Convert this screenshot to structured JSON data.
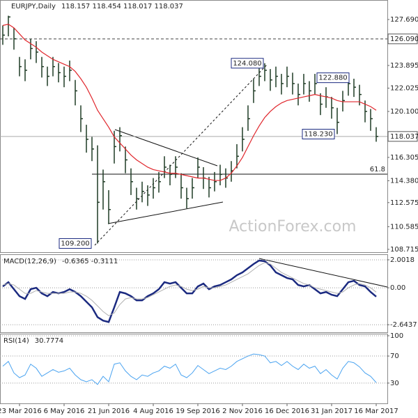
{
  "chart_data": [
    {
      "type": "hlc",
      "title": "EURJPY,Daily",
      "subtitle": "118.157 118.454 118.017 118.037",
      "categories": [
        null,
        null,
        null,
        "23 Mar 2016",
        null,
        null,
        null,
        null,
        null,
        null,
        null,
        "6 May 2016",
        null,
        null,
        null,
        null,
        null,
        null,
        null,
        "21 Jun 2016",
        null,
        null,
        null,
        null,
        null,
        null,
        null,
        "4 Aug 2016",
        null,
        null,
        null,
        null,
        null,
        null,
        null,
        "19 Sep 2016",
        null,
        null,
        null,
        null,
        null,
        null,
        null,
        "2 Nov 2016",
        null,
        null,
        null,
        null,
        null,
        null,
        null,
        "16 Dec 2016",
        null,
        null,
        null,
        null,
        null,
        null,
        null,
        "31 Jan 2017",
        null,
        null,
        null,
        null,
        null,
        null,
        null,
        "16 Mar 2017"
      ],
      "high": [
        127.2,
        128.0,
        127.0,
        124.6,
        124.4,
        126.1,
        125.9,
        124.6,
        123.8,
        124.6,
        124.1,
        123.8,
        124.3,
        122.7,
        120.6,
        119.0,
        118.0,
        117.3,
        115.3,
        113.6,
        118.5,
        118.8,
        117.2,
        115.4,
        113.8,
        114.3,
        114.0,
        114.6,
        115.1,
        116.4,
        115.7,
        116.4,
        115.0,
        113.8,
        114.6,
        116.3,
        115.5,
        114.7,
        115.1,
        115.7,
        115.4,
        116.0,
        117.4,
        118.8,
        120.6,
        122.8,
        123.7,
        124.08,
        123.6,
        123.8,
        123.2,
        123.8,
        123.3,
        122.4,
        123.2,
        122.6,
        123.2,
        121.6,
        122.1,
        121.3,
        120.4,
        121.8,
        122.88,
        122.8,
        122.3,
        121.0,
        120.3,
        118.8
      ],
      "low": [
        125.6,
        126.3,
        125.2,
        123.0,
        122.6,
        124.4,
        124.1,
        122.9,
        122.2,
        123.0,
        122.5,
        122.1,
        122.6,
        120.6,
        118.4,
        116.7,
        116.0,
        109.2,
        112.0,
        110.8,
        115.8,
        116.8,
        115.0,
        113.2,
        112.0,
        112.6,
        112.3,
        112.9,
        113.4,
        114.6,
        114.0,
        114.6,
        112.9,
        112.1,
        112.9,
        114.6,
        113.7,
        113.0,
        113.5,
        114.0,
        113.8,
        114.3,
        115.4,
        116.8,
        118.5,
        120.8,
        122.2,
        122.6,
        121.8,
        122.1,
        121.5,
        122.1,
        121.5,
        120.6,
        121.5,
        120.9,
        121.5,
        119.8,
        120.4,
        119.5,
        118.23,
        120.1,
        121.4,
        121.3,
        120.6,
        119.2,
        118.5,
        117.6
      ],
      "close": [
        126.4,
        127.9,
        126.1,
        123.8,
        123.5,
        125.3,
        125.0,
        123.8,
        123.0,
        123.8,
        123.3,
        123.0,
        123.5,
        121.8,
        119.5,
        117.8,
        117.0,
        112.6,
        114.3,
        112.0,
        117.2,
        118.1,
        116.1,
        114.3,
        112.9,
        113.5,
        113.2,
        113.8,
        114.3,
        115.5,
        114.9,
        115.5,
        113.8,
        112.9,
        113.8,
        115.5,
        114.6,
        113.8,
        114.3,
        114.9,
        114.6,
        115.2,
        116.4,
        117.8,
        119.5,
        121.8,
        123.0,
        123.5,
        122.7,
        123.0,
        122.4,
        123.0,
        122.4,
        121.5,
        122.4,
        121.8,
        122.4,
        120.7,
        121.3,
        120.4,
        119.2,
        121.0,
        122.4,
        122.1,
        121.5,
        120.1,
        119.5,
        118.037
      ],
      "color": "#1e3a24",
      "overlay_values": [
        127.2,
        127.3,
        127.0,
        126.5,
        126.0,
        125.7,
        125.4,
        125.0,
        124.7,
        124.4,
        124.2,
        124.0,
        123.8,
        123.4,
        122.8,
        122.1,
        121.2,
        120.2,
        119.5,
        118.8,
        118.0,
        117.5,
        117.0,
        116.5,
        116.1,
        115.8,
        115.5,
        115.3,
        115.2,
        115.1,
        115.0,
        115.0,
        114.9,
        114.8,
        114.7,
        114.6,
        114.6,
        114.5,
        114.4,
        114.4,
        114.6,
        115.0,
        115.6,
        116.3,
        117.2,
        118.1,
        118.9,
        119.6,
        120.1,
        120.5,
        120.8,
        121.0,
        121.1,
        121.2,
        121.3,
        121.4,
        121.5,
        121.4,
        121.3,
        121.2,
        121.0,
        120.9,
        120.9,
        120.9,
        120.9,
        120.7,
        120.5,
        120.2
      ],
      "overlay_color": "#e0262c",
      "ylim": [
        108.48,
        129.3
      ],
      "yticks": [
        {
          "value": 127.69,
          "label": "127.690"
        },
        {
          "value": 123.895,
          "label": "123.895"
        },
        {
          "value": 122.025,
          "label": "122.025"
        },
        {
          "value": 120.1,
          "label": "120.100"
        },
        {
          "value": 116.305,
          "label": "116.305"
        },
        {
          "value": 114.38,
          "label": "114.380"
        },
        {
          "value": 112.575,
          "label": "112.575"
        },
        {
          "value": 110.585,
          "label": "110.585"
        },
        {
          "value": 108.715,
          "label": "108.715"
        }
      ],
      "resistance": {
        "value": 126.09,
        "label": "126.090"
      },
      "last_price": {
        "value": 118.037,
        "label": "118.037"
      },
      "fib_line": {
        "value": 114.92,
        "label": "61.8"
      },
      "annotations": [
        {
          "value": 109.2,
          "label": "109.200"
        },
        {
          "value": 124.08,
          "label": "124.080"
        },
        {
          "value": 122.88,
          "label": "122.880"
        },
        {
          "value": 118.23,
          "label": "118.230"
        }
      ],
      "watermark": "ActionForex.com",
      "grid": false
    },
    {
      "type": "line",
      "title": "MACD(12,26,9)",
      "subtitle": "-0.6365 -0.3111",
      "series": [
        {
          "color": "#1b2a80",
          "values": [
            0.1,
            0.4,
            -0.1,
            -0.6,
            -0.8,
            -0.1,
            0.0,
            -0.4,
            -0.6,
            -0.3,
            -0.4,
            -0.3,
            -0.1,
            -0.3,
            -0.6,
            -1.0,
            -1.4,
            -2.1,
            -2.35,
            -2.45,
            -1.4,
            -0.3,
            -0.4,
            -0.6,
            -0.9,
            -0.9,
            -0.6,
            -0.4,
            -0.1,
            0.4,
            0.3,
            0.4,
            0.0,
            -0.4,
            -0.4,
            0.1,
            0.3,
            -0.1,
            0.1,
            0.2,
            0.4,
            0.6,
            0.9,
            1.1,
            1.4,
            1.7,
            1.95,
            1.9,
            1.6,
            1.1,
            0.9,
            0.7,
            0.6,
            0.2,
            0.1,
            0.2,
            -0.1,
            -0.4,
            -0.3,
            -0.5,
            -0.6,
            -0.1,
            0.4,
            0.5,
            0.2,
            0.1,
            -0.3,
            -0.6365
          ]
        },
        {
          "color": "#b0b0b0",
          "values": [
            0.2,
            0.3,
            0.2,
            -0.1,
            -0.4,
            -0.4,
            -0.2,
            -0.3,
            -0.4,
            -0.4,
            -0.4,
            -0.4,
            -0.3,
            -0.3,
            -0.4,
            -0.6,
            -0.9,
            -1.3,
            -1.7,
            -2.0,
            -1.8,
            -1.2,
            -0.8,
            -0.7,
            -0.8,
            -0.8,
            -0.7,
            -0.5,
            -0.3,
            -0.1,
            0.1,
            0.2,
            0.1,
            -0.1,
            -0.2,
            -0.1,
            0.1,
            0.0,
            0.0,
            0.1,
            0.2,
            0.4,
            0.6,
            0.8,
            1.0,
            1.3,
            1.6,
            1.8,
            1.7,
            1.4,
            1.1,
            0.9,
            0.7,
            0.5,
            0.3,
            0.2,
            0.0,
            -0.1,
            -0.2,
            -0.3,
            -0.4,
            -0.3,
            0.0,
            0.2,
            0.3,
            0.2,
            0.0,
            -0.3111
          ]
        }
      ],
      "ylim": [
        -3.187,
        2.348
      ],
      "yticks": [
        2.0018,
        {
          "value": 0,
          "label": "0.00"
        },
        -2.6437
      ],
      "grid": true
    },
    {
      "type": "line",
      "title": "RSI(14)",
      "subtitle": "30.7774",
      "series": [
        {
          "color": "#4aa3f0",
          "values": [
            55,
            62,
            45,
            38,
            42,
            58,
            52,
            40,
            45,
            50,
            46,
            48,
            52,
            42,
            35,
            32,
            35,
            28,
            40,
            32,
            58,
            60,
            48,
            40,
            35,
            42,
            40,
            45,
            48,
            55,
            52,
            58,
            42,
            38,
            45,
            56,
            50,
            44,
            48,
            52,
            50,
            55,
            62,
            66,
            70,
            73,
            72,
            70,
            60,
            62,
            56,
            62,
            55,
            50,
            58,
            52,
            55,
            44,
            50,
            42,
            36,
            52,
            62,
            60,
            54,
            45,
            40,
            30.7774
          ]
        }
      ],
      "ylim": [
        0,
        102
      ],
      "yticks": [
        100,
        70,
        30
      ],
      "grid": true
    }
  ]
}
